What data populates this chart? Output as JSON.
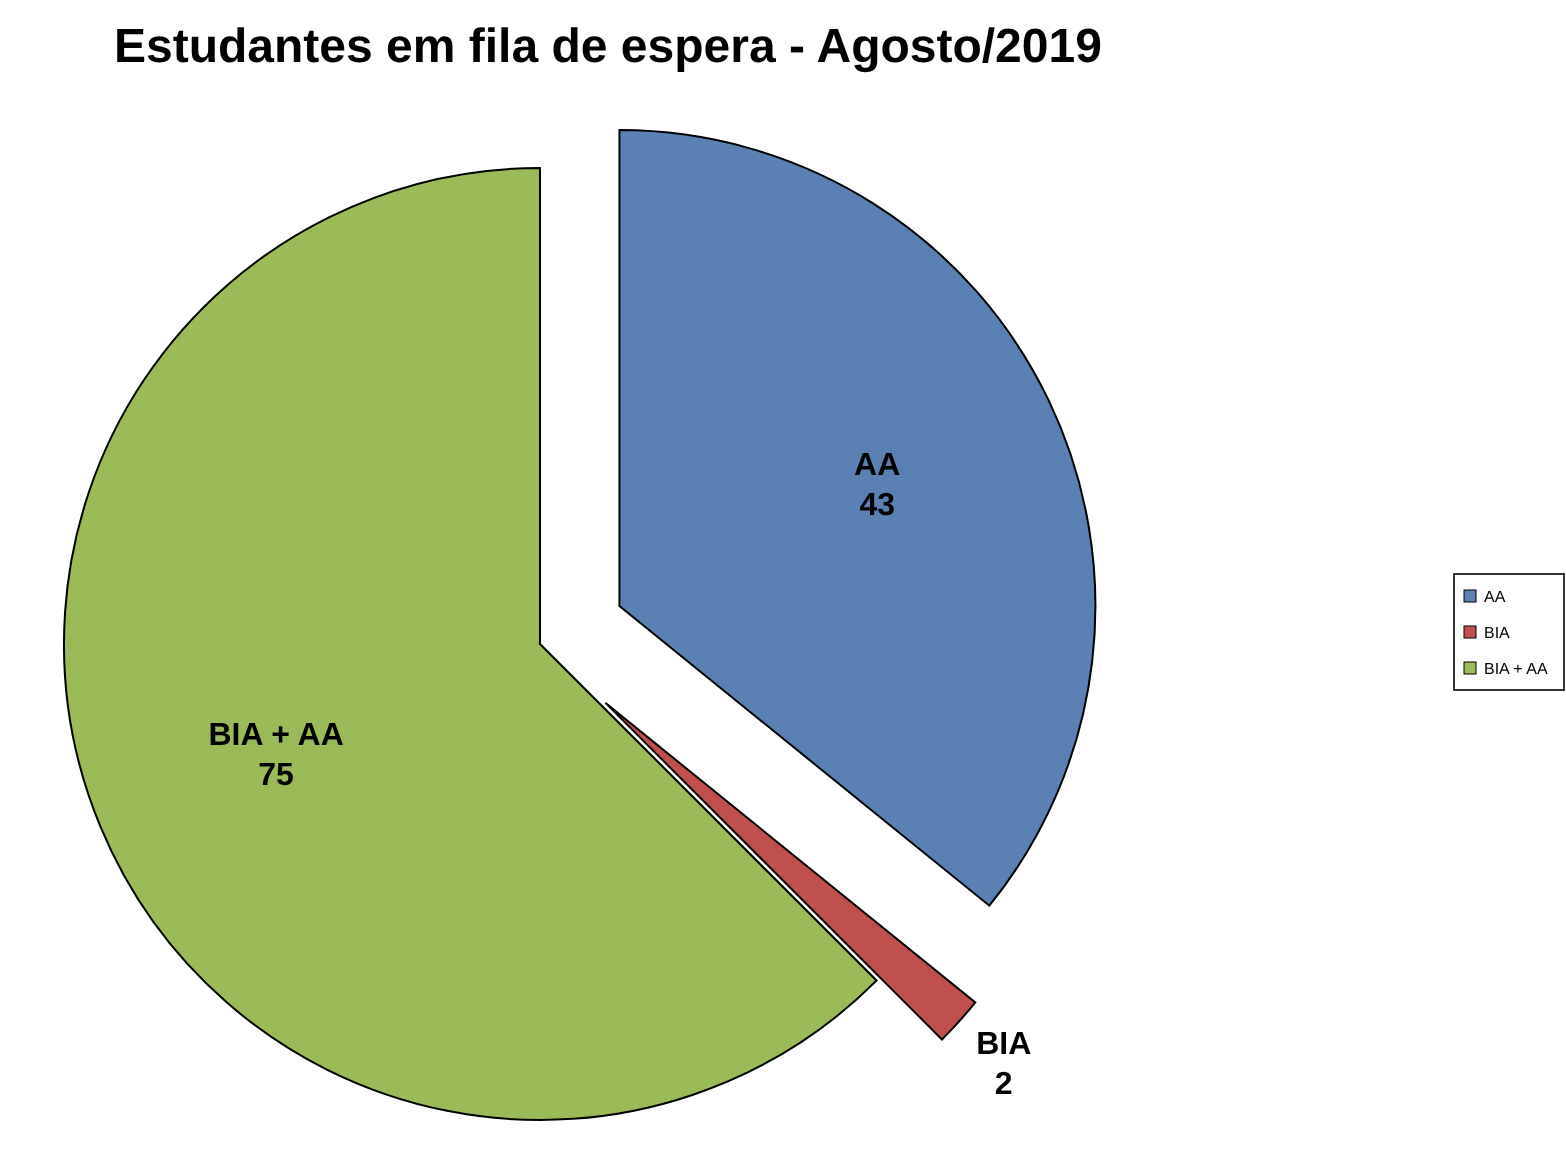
{
  "chart_data": {
    "type": "pie",
    "title": "Estudantes em fila de espera - Agosto/2019",
    "categories": [
      "AA",
      "BIA",
      "BIA + AA"
    ],
    "values": [
      43,
      2,
      75
    ],
    "colors": [
      "#5b80b4",
      "#c0504d",
      "#9bbb59"
    ],
    "data_labels": true,
    "legend": "right"
  }
}
